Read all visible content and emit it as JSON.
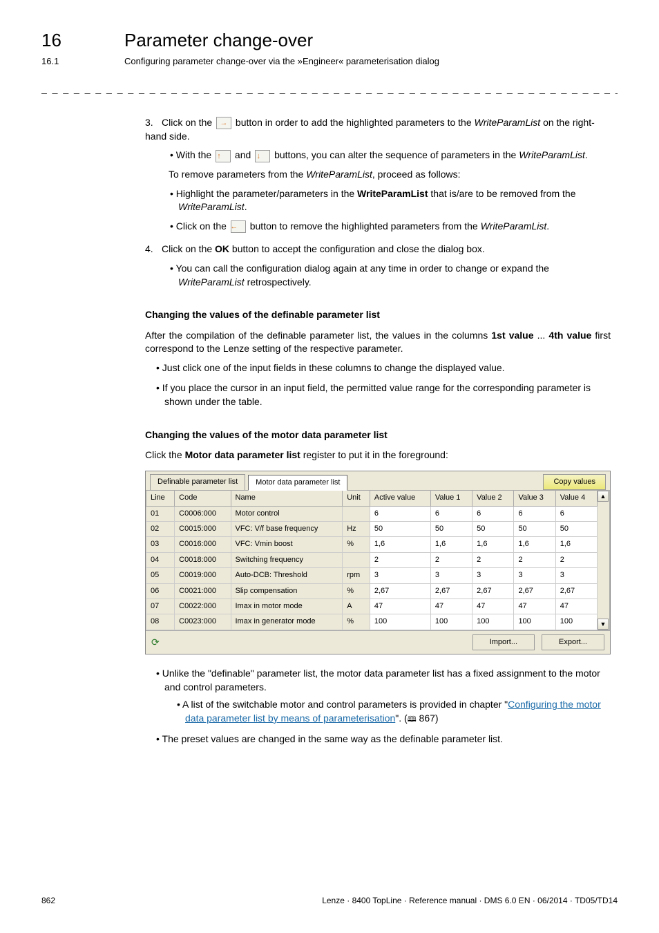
{
  "header": {
    "chapter_num": "16",
    "chapter_title": "Parameter change-over",
    "sub_num": "16.1",
    "sub_title": "Configuring parameter change-over via the »Engineer« parameterisation dialog"
  },
  "step3": {
    "num": "3.",
    "text_a": "Click on the ",
    "text_b": " button in order to add the highlighted parameters to the ",
    "text_c": "WriteParamList",
    "text_d": " on the right-hand side.",
    "sub1_a": "With the ",
    "sub1_b": " and ",
    "sub1_c": " buttons, you can alter the sequence of parameters in the ",
    "sub1_d": "WriteParamList",
    "sub1_e": ".",
    "remove_intro_a": "To remove parameters from the ",
    "remove_intro_b": "WriteParamList",
    "remove_intro_c": ", proceed as follows:",
    "rem1_a": "Highlight the parameter/parameters in the ",
    "rem1_b": "WriteParamList",
    "rem1_c": " that is/are to be removed from the ",
    "rem1_d": "WriteParamList",
    "rem1_e": ".",
    "rem2_a": "Click on the ",
    "rem2_b": " button to remove the highlighted parameters from the ",
    "rem2_c": "WriteParamList",
    "rem2_d": "."
  },
  "step4": {
    "num": "4.",
    "text_a": "Click on the ",
    "text_b": "OK",
    "text_c": " button to accept the configuration and close the dialog box.",
    "sub_a": "You can call the configuration dialog again at any time in order to change or expand the ",
    "sub_b": "WriteParamList",
    "sub_c": " retrospectively."
  },
  "sect_change_def": {
    "title": "Changing the values of the definable parameter list",
    "para_a": "After the compilation of the definable parameter list, the values in the columns ",
    "para_b": "1st value",
    "para_c": " ... ",
    "para_d": "4th value",
    "para_e": " first correspond to the Lenze setting of the respective parameter.",
    "b1": "Just click one of the input fields in these columns to change the displayed value.",
    "b2": "If you place the cursor in an input field, the permitted value range for the corresponding parameter is shown under the table."
  },
  "sect_motor": {
    "title": "Changing the values of the motor data parameter list",
    "intro_a": "Click the ",
    "intro_b": "Motor data parameter list",
    "intro_c": " register to put it in the foreground:"
  },
  "table": {
    "tabs": {
      "definable": "Definable parameter list",
      "motor": "Motor data parameter list"
    },
    "copy_btn": "Copy values",
    "import_btn": "Import...",
    "export_btn": "Export...",
    "columns": [
      "Line",
      "Code",
      "Name",
      "Unit",
      "Active value",
      "Value 1",
      "Value 2",
      "Value 3",
      "Value 4"
    ],
    "rows": [
      [
        "01",
        "C0006:000",
        "Motor control",
        "",
        "6",
        "6",
        "6",
        "6",
        "6"
      ],
      [
        "02",
        "C0015:000",
        "VFC: V/f base frequency",
        "Hz",
        "50",
        "50",
        "50",
        "50",
        "50"
      ],
      [
        "03",
        "C0016:000",
        "VFC: Vmin boost",
        "%",
        "1,6",
        "1,6",
        "1,6",
        "1,6",
        "1,6"
      ],
      [
        "04",
        "C0018:000",
        "Switching frequency",
        "",
        "2",
        "2",
        "2",
        "2",
        "2"
      ],
      [
        "05",
        "C0019:000",
        "Auto-DCB: Threshold",
        "rpm",
        "3",
        "3",
        "3",
        "3",
        "3"
      ],
      [
        "06",
        "C0021:000",
        "Slip compensation",
        "%",
        "2,67",
        "2,67",
        "2,67",
        "2,67",
        "2,67"
      ],
      [
        "07",
        "C0022:000",
        "Imax in motor mode",
        "A",
        "47",
        "47",
        "47",
        "47",
        "47"
      ],
      [
        "08",
        "C0023:000",
        "Imax in generator mode",
        "%",
        "100",
        "100",
        "100",
        "100",
        "100"
      ]
    ]
  },
  "after_table": {
    "b1": "Unlike the \"definable\" parameter list, the motor data parameter list has a fixed assignment to the motor and control parameters.",
    "b1_sub_a": "A list of the switchable motor and control parameters is provided in chapter \"",
    "b1_sub_link": "Configuring the motor data parameter list by means of parameterisation",
    "b1_sub_b": "\". (",
    "b1_sub_pg": " 867)",
    "b2": "The preset values are changed in the same way as the definable parameter list."
  },
  "footer": {
    "page": "862",
    "ref": "Lenze · 8400 TopLine · Reference manual · DMS 6.0 EN · 06/2014 · TD05/TD14"
  }
}
